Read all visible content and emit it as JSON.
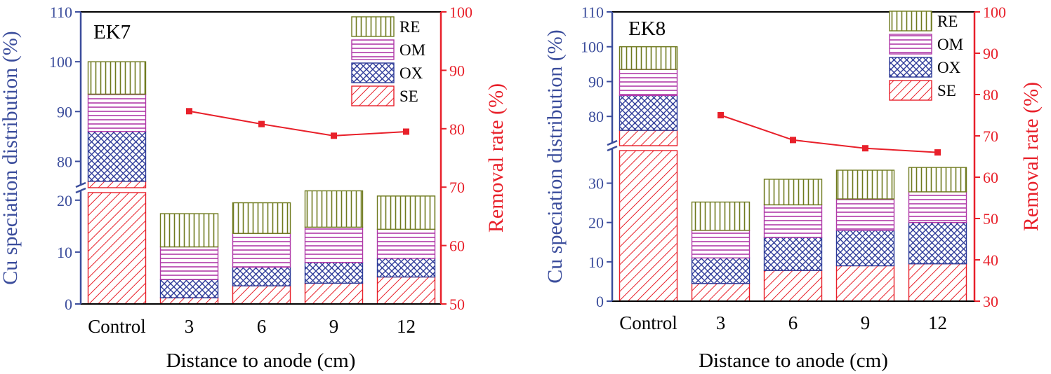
{
  "colors": {
    "SE": "#e8202a",
    "OX": "#2d3a98",
    "OM": "#b03aa8",
    "RE": "#6f7a1e",
    "left_axis": "#3b4d9c",
    "right_axis": "#e8202a",
    "removal_line": "#e8202a"
  },
  "chart_data": [
    {
      "type": "bar",
      "stacked": true,
      "broken_axis": true,
      "panel_label": "EK7",
      "xlabel": "Distance to anode (cm)",
      "ylabel": "Cu speciation distribution (%)",
      "y2label": "Removal rate (%)",
      "categories": [
        "Control",
        "3",
        "6",
        "9",
        "12"
      ],
      "y_lower_range": [
        0,
        22
      ],
      "y_lower_ticks": [
        "0",
        "10",
        "20"
      ],
      "y_upper_range": [
        75,
        110
      ],
      "y_upper_ticks": [
        "80",
        "90",
        "100",
        "110"
      ],
      "y2_range": [
        50,
        100
      ],
      "y2_ticks": [
        "50",
        "60",
        "70",
        "80",
        "90",
        "100"
      ],
      "legend": [
        "RE",
        "OM",
        "OX",
        "SE"
      ],
      "legend_position": "top-right",
      "series": [
        {
          "name": "SE",
          "values": [
            76,
            1.2,
            3.5,
            4.0,
            5.2
          ]
        },
        {
          "name": "OX",
          "values": [
            10,
            3.5,
            3.6,
            4.0,
            3.6
          ]
        },
        {
          "name": "OM",
          "values": [
            7.5,
            6.3,
            6.5,
            6.8,
            5.6
          ]
        },
        {
          "name": "RE",
          "values": [
            6.5,
            6.4,
            5.9,
            7.0,
            6.4
          ]
        }
      ],
      "removal_rate": {
        "categories": [
          "3",
          "6",
          "9",
          "12"
        ],
        "values": [
          83,
          80.8,
          78.8,
          79.5
        ]
      }
    },
    {
      "type": "bar",
      "stacked": true,
      "broken_axis": true,
      "panel_label": "EK8",
      "xlabel": "Distance to anode (cm)",
      "ylabel": "Cu speciation distribution (%)",
      "y2label": "Removal rate (%)",
      "categories": [
        "Control",
        "3",
        "6",
        "9",
        "12"
      ],
      "y_lower_range": [
        0,
        39
      ],
      "y_lower_ticks": [
        "0",
        "10",
        "20",
        "30"
      ],
      "y_upper_range": [
        72,
        110
      ],
      "y_upper_ticks": [
        "80",
        "90",
        "100",
        "110"
      ],
      "y2_range": [
        30,
        100
      ],
      "y2_ticks": [
        "30",
        "40",
        "50",
        "60",
        "70",
        "80",
        "90",
        "100"
      ],
      "legend": [
        "RE",
        "OM",
        "OX",
        "SE"
      ],
      "legend_position": "top-right",
      "series": [
        {
          "name": "SE",
          "values": [
            76,
            4.5,
            7.8,
            9.0,
            9.5
          ]
        },
        {
          "name": "OX",
          "values": [
            10,
            6.5,
            8.4,
            9.0,
            10.5
          ]
        },
        {
          "name": "OM",
          "values": [
            7.5,
            7.0,
            8.3,
            8.0,
            7.8
          ]
        },
        {
          "name": "RE",
          "values": [
            6.5,
            7.2,
            6.5,
            7.3,
            6.2
          ]
        }
      ],
      "removal_rate": {
        "categories": [
          "3",
          "6",
          "9",
          "12"
        ],
        "values": [
          75,
          69,
          67,
          66
        ]
      }
    }
  ]
}
